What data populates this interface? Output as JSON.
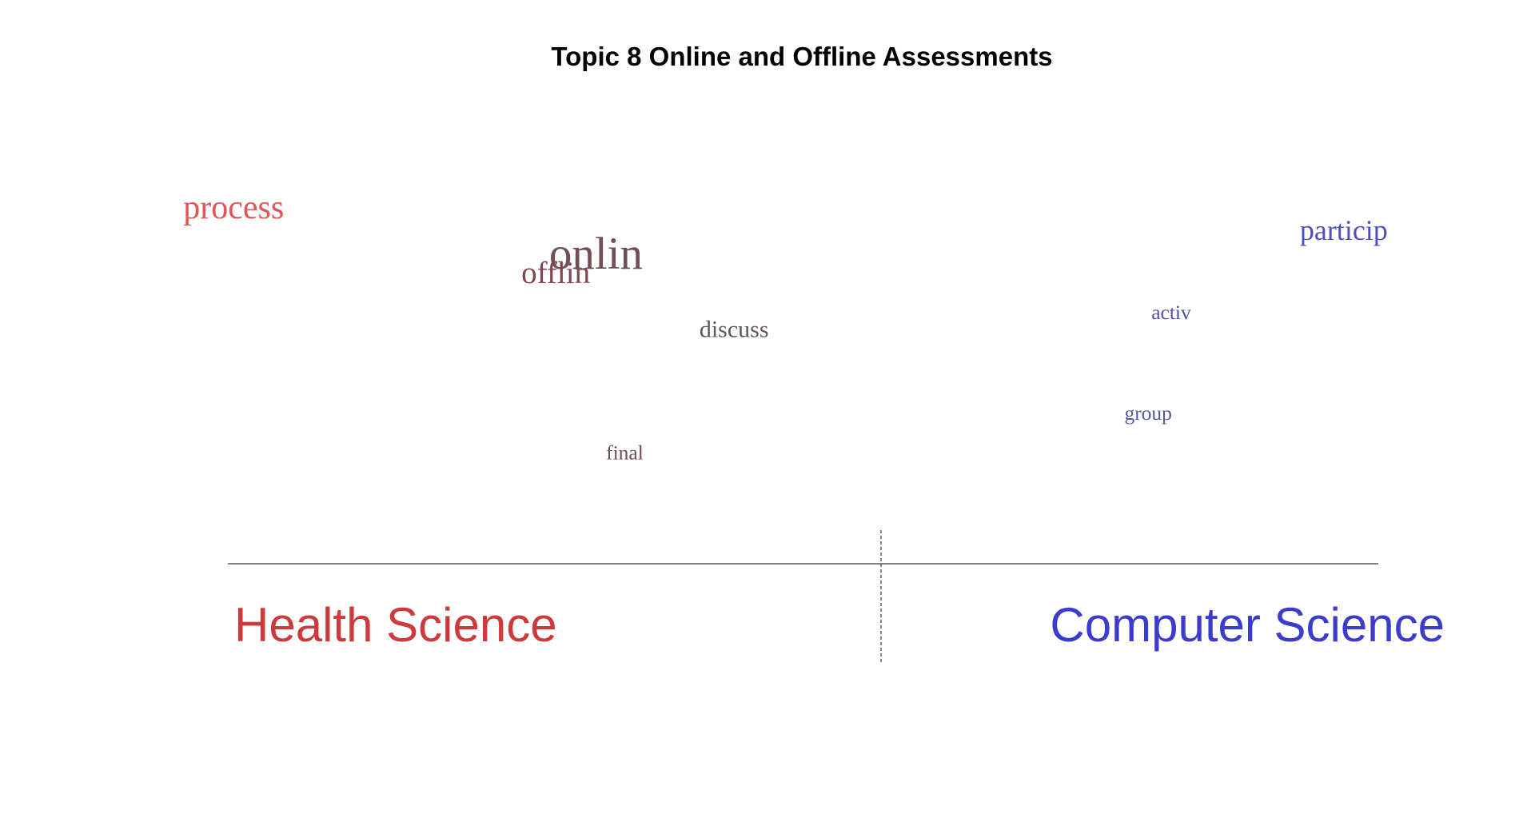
{
  "chart_data": {
    "type": "scatter",
    "title": "Topic 8 Online and Offline Assessments",
    "xlabel": "",
    "ylabel": "",
    "xlim": [
      -1,
      1
    ],
    "ylim": [
      0,
      1
    ],
    "grid": false,
    "groups": [
      {
        "name": "Health Science",
        "color": "#cc3b3b",
        "side": "left"
      },
      {
        "name": "Computer Science",
        "color": "#3b3bcc",
        "side": "right"
      }
    ],
    "words": [
      {
        "text": "process",
        "x": -0.99,
        "y": 0.86,
        "size": 1.4,
        "color": "#e05555"
      },
      {
        "text": "onlin",
        "x": -0.36,
        "y": 0.72,
        "size": 1.9,
        "color": "#704f55"
      },
      {
        "text": "offlin",
        "x": -0.43,
        "y": 0.68,
        "size": 1.3,
        "color": "#80454e"
      },
      {
        "text": "discuss",
        "x": -0.12,
        "y": 0.53,
        "size": 1.0,
        "color": "#625458"
      },
      {
        "text": "final",
        "x": -0.31,
        "y": 0.19,
        "size": 0.85,
        "color": "#6a4d52"
      },
      {
        "text": "particip",
        "x": 0.94,
        "y": 0.8,
        "size": 1.2,
        "color": "#4e4ec2"
      },
      {
        "text": "activ",
        "x": 0.64,
        "y": 0.58,
        "size": 0.85,
        "color": "#52509e"
      },
      {
        "text": "group",
        "x": 0.6,
        "y": 0.3,
        "size": 0.85,
        "color": "#5555a5"
      }
    ]
  }
}
